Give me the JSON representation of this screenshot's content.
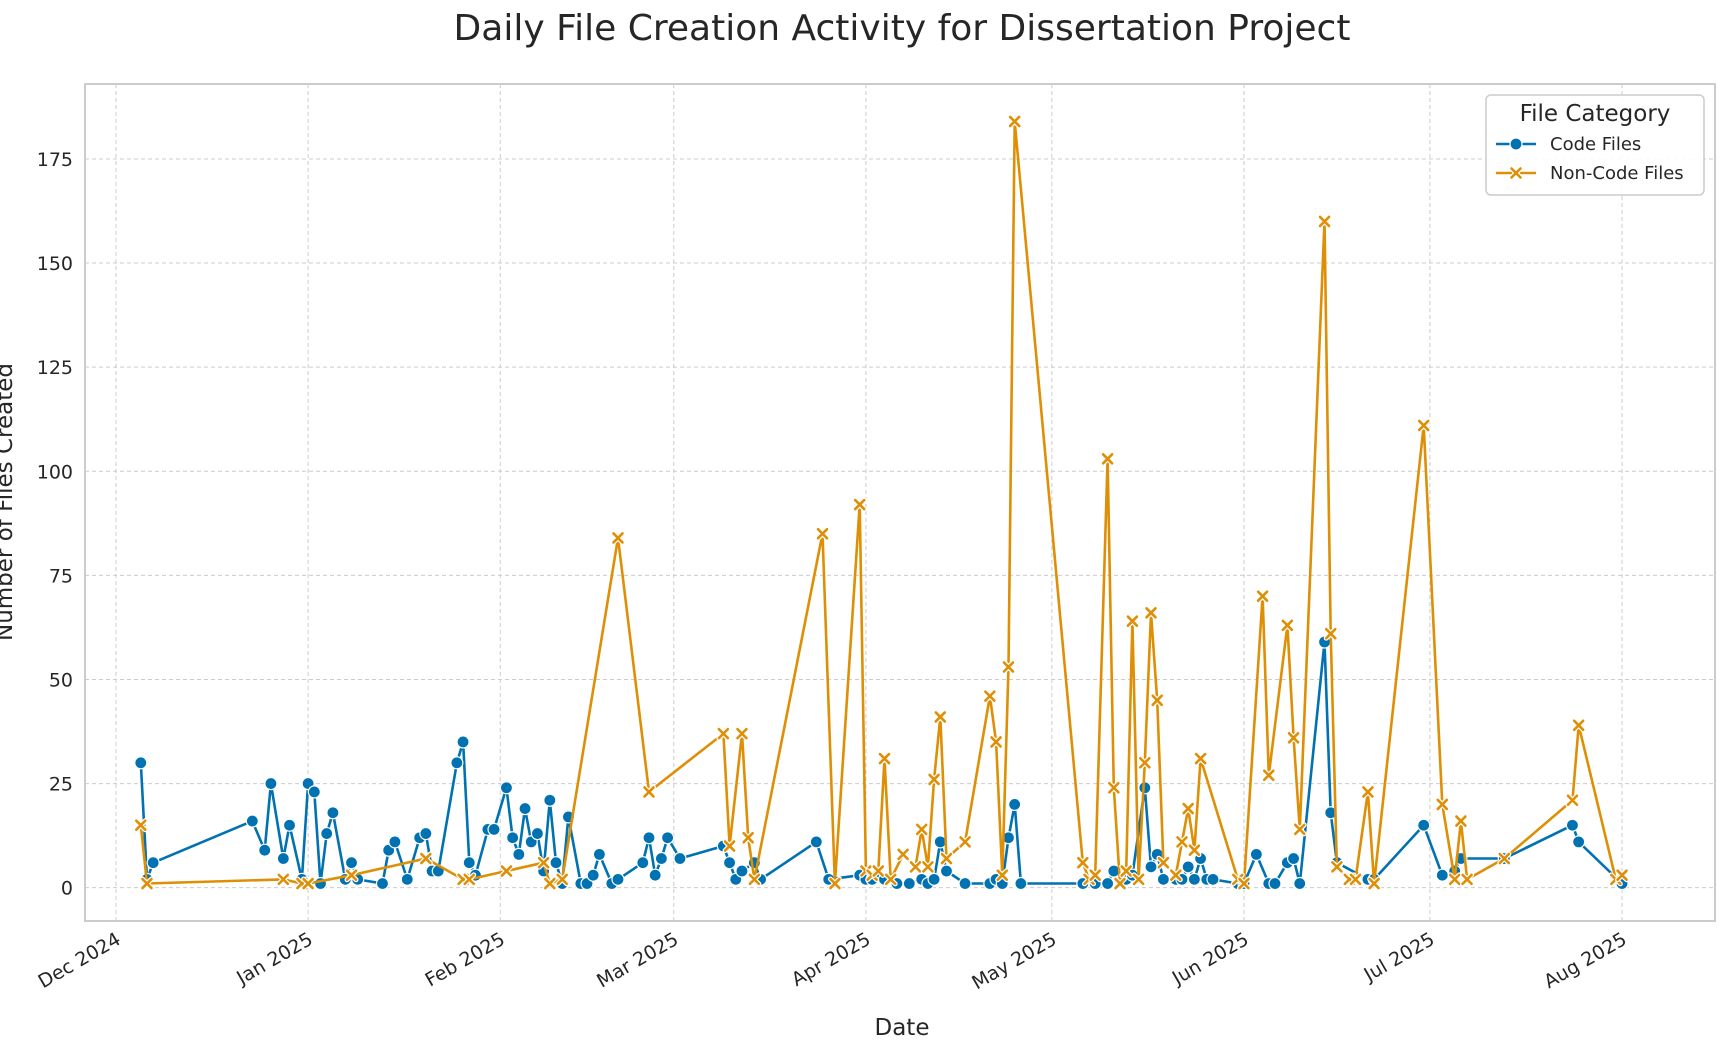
{
  "chart_data": {
    "type": "line",
    "title": "Daily File Creation Activity for Dissertation Project",
    "xlabel": "Date",
    "ylabel": "Number of Files Created",
    "xlim": [
      "2024-11-26",
      "2025-08-16"
    ],
    "ylim": [
      -8,
      193
    ],
    "yticks": [
      0,
      25,
      50,
      75,
      100,
      125,
      150,
      175
    ],
    "xticks": [
      {
        "date": "2024-12-01",
        "label": "Dec 2024"
      },
      {
        "date": "2025-01-01",
        "label": "Jan 2025"
      },
      {
        "date": "2025-02-01",
        "label": "Feb 2025"
      },
      {
        "date": "2025-03-01",
        "label": "Mar 2025"
      },
      {
        "date": "2025-04-01",
        "label": "Apr 2025"
      },
      {
        "date": "2025-05-01",
        "label": "May 2025"
      },
      {
        "date": "2025-06-01",
        "label": "Jun 2025"
      },
      {
        "date": "2025-07-01",
        "label": "Jul 2025"
      },
      {
        "date": "2025-08-01",
        "label": "Aug 2025"
      }
    ],
    "grid": true,
    "legend": {
      "title": "File Category",
      "position": "top-right"
    },
    "series": [
      {
        "name": "Code Files",
        "color": "#0072b2",
        "marker": "circle",
        "points": [
          [
            "2024-12-05",
            30
          ],
          [
            "2024-12-06",
            2
          ],
          [
            "2024-12-07",
            6
          ],
          [
            "2024-12-23",
            16
          ],
          [
            "2024-12-25",
            9
          ],
          [
            "2024-12-26",
            25
          ],
          [
            "2024-12-28",
            7
          ],
          [
            "2024-12-29",
            15
          ],
          [
            "2024-12-31",
            2
          ],
          [
            "2025-01-01",
            25
          ],
          [
            "2025-01-02",
            23
          ],
          [
            "2025-01-03",
            1
          ],
          [
            "2025-01-04",
            13
          ],
          [
            "2025-01-05",
            18
          ],
          [
            "2025-01-07",
            2
          ],
          [
            "2025-01-08",
            6
          ],
          [
            "2025-01-09",
            2
          ],
          [
            "2025-01-13",
            1
          ],
          [
            "2025-01-14",
            9
          ],
          [
            "2025-01-15",
            11
          ],
          [
            "2025-01-17",
            2
          ],
          [
            "2025-01-19",
            12
          ],
          [
            "2025-01-20",
            13
          ],
          [
            "2025-01-21",
            4
          ],
          [
            "2025-01-22",
            4
          ],
          [
            "2025-01-25",
            30
          ],
          [
            "2025-01-26",
            35
          ],
          [
            "2025-01-27",
            6
          ],
          [
            "2025-01-28",
            3
          ],
          [
            "2025-01-30",
            14
          ],
          [
            "2025-01-31",
            14
          ],
          [
            "2025-02-02",
            24
          ],
          [
            "2025-02-03",
            12
          ],
          [
            "2025-02-04",
            8
          ],
          [
            "2025-02-05",
            19
          ],
          [
            "2025-02-06",
            11
          ],
          [
            "2025-02-07",
            13
          ],
          [
            "2025-02-08",
            4
          ],
          [
            "2025-02-09",
            21
          ],
          [
            "2025-02-10",
            6
          ],
          [
            "2025-02-11",
            1
          ],
          [
            "2025-02-12",
            17
          ],
          [
            "2025-02-14",
            1
          ],
          [
            "2025-02-15",
            1
          ],
          [
            "2025-02-16",
            3
          ],
          [
            "2025-02-17",
            8
          ],
          [
            "2025-02-19",
            1
          ],
          [
            "2025-02-20",
            2
          ],
          [
            "2025-02-24",
            6
          ],
          [
            "2025-02-25",
            12
          ],
          [
            "2025-02-26",
            3
          ],
          [
            "2025-02-27",
            7
          ],
          [
            "2025-02-28",
            12
          ],
          [
            "2025-03-02",
            7
          ],
          [
            "2025-03-09",
            10
          ],
          [
            "2025-03-10",
            6
          ],
          [
            "2025-03-11",
            2
          ],
          [
            "2025-03-12",
            4
          ],
          [
            "2025-03-14",
            6
          ],
          [
            "2025-03-15",
            2
          ],
          [
            "2025-03-24",
            11
          ],
          [
            "2025-03-26",
            2
          ],
          [
            "2025-03-31",
            3
          ],
          [
            "2025-04-01",
            2
          ],
          [
            "2025-04-02",
            2
          ],
          [
            "2025-04-03",
            3
          ],
          [
            "2025-04-04",
            2
          ],
          [
            "2025-04-06",
            1
          ],
          [
            "2025-04-08",
            1
          ],
          [
            "2025-04-10",
            2
          ],
          [
            "2025-04-11",
            1
          ],
          [
            "2025-04-12",
            2
          ],
          [
            "2025-04-13",
            11
          ],
          [
            "2025-04-14",
            4
          ],
          [
            "2025-04-17",
            1
          ],
          [
            "2025-04-21",
            1
          ],
          [
            "2025-04-22",
            2
          ],
          [
            "2025-04-23",
            1
          ],
          [
            "2025-04-24",
            12
          ],
          [
            "2025-04-25",
            20
          ],
          [
            "2025-04-26",
            1
          ],
          [
            "2025-05-06",
            1
          ],
          [
            "2025-05-08",
            1
          ],
          [
            "2025-05-10",
            1
          ],
          [
            "2025-05-11",
            4
          ],
          [
            "2025-05-13",
            2
          ],
          [
            "2025-05-14",
            3
          ],
          [
            "2025-05-16",
            24
          ],
          [
            "2025-05-17",
            5
          ],
          [
            "2025-05-18",
            8
          ],
          [
            "2025-05-19",
            2
          ],
          [
            "2025-05-21",
            2
          ],
          [
            "2025-05-22",
            2
          ],
          [
            "2025-05-23",
            5
          ],
          [
            "2025-05-24",
            2
          ],
          [
            "2025-05-25",
            7
          ],
          [
            "2025-05-26",
            2
          ],
          [
            "2025-05-27",
            2
          ],
          [
            "2025-05-31",
            1
          ],
          [
            "2025-06-01",
            1
          ],
          [
            "2025-06-03",
            8
          ],
          [
            "2025-06-05",
            1
          ],
          [
            "2025-06-06",
            1
          ],
          [
            "2025-06-08",
            6
          ],
          [
            "2025-06-09",
            7
          ],
          [
            "2025-06-10",
            1
          ],
          [
            "2025-06-14",
            59
          ],
          [
            "2025-06-15",
            18
          ],
          [
            "2025-06-16",
            6
          ],
          [
            "2025-06-21",
            2
          ],
          [
            "2025-06-22",
            2
          ],
          [
            "2025-06-30",
            15
          ],
          [
            "2025-07-03",
            3
          ],
          [
            "2025-07-05",
            4
          ],
          [
            "2025-07-06",
            7
          ],
          [
            "2025-07-13",
            7
          ],
          [
            "2025-07-24",
            15
          ],
          [
            "2025-07-25",
            11
          ],
          [
            "2025-08-01",
            1
          ]
        ]
      },
      {
        "name": "Non-Code Files",
        "color": "#de8f05",
        "marker": "x",
        "points": [
          [
            "2024-12-05",
            15
          ],
          [
            "2024-12-06",
            1
          ],
          [
            "2024-12-28",
            2
          ],
          [
            "2024-12-31",
            1
          ],
          [
            "2025-01-01",
            1
          ],
          [
            "2025-01-08",
            3
          ],
          [
            "2025-01-20",
            7
          ],
          [
            "2025-01-26",
            2
          ],
          [
            "2025-01-27",
            2
          ],
          [
            "2025-02-02",
            4
          ],
          [
            "2025-02-08",
            6
          ],
          [
            "2025-02-09",
            1
          ],
          [
            "2025-02-11",
            2
          ],
          [
            "2025-02-20",
            84
          ],
          [
            "2025-02-25",
            23
          ],
          [
            "2025-03-09",
            37
          ],
          [
            "2025-03-10",
            10
          ],
          [
            "2025-03-12",
            37
          ],
          [
            "2025-03-13",
            12
          ],
          [
            "2025-03-14",
            2
          ],
          [
            "2025-03-25",
            85
          ],
          [
            "2025-03-27",
            1
          ],
          [
            "2025-03-31",
            92
          ],
          [
            "2025-04-01",
            4
          ],
          [
            "2025-04-02",
            3
          ],
          [
            "2025-04-03",
            4
          ],
          [
            "2025-04-04",
            31
          ],
          [
            "2025-04-05",
            2
          ],
          [
            "2025-04-07",
            8
          ],
          [
            "2025-04-09",
            5
          ],
          [
            "2025-04-10",
            14
          ],
          [
            "2025-04-11",
            5
          ],
          [
            "2025-04-12",
            26
          ],
          [
            "2025-04-13",
            41
          ],
          [
            "2025-04-14",
            7
          ],
          [
            "2025-04-17",
            11
          ],
          [
            "2025-04-21",
            46
          ],
          [
            "2025-04-22",
            35
          ],
          [
            "2025-04-23",
            3
          ],
          [
            "2025-04-24",
            53
          ],
          [
            "2025-04-25",
            184
          ],
          [
            "2025-05-06",
            6
          ],
          [
            "2025-05-07",
            2
          ],
          [
            "2025-05-08",
            3
          ],
          [
            "2025-05-10",
            103
          ],
          [
            "2025-05-11",
            24
          ],
          [
            "2025-05-12",
            1
          ],
          [
            "2025-05-13",
            4
          ],
          [
            "2025-05-14",
            64
          ],
          [
            "2025-05-15",
            2
          ],
          [
            "2025-05-16",
            30
          ],
          [
            "2025-05-17",
            66
          ],
          [
            "2025-05-18",
            45
          ],
          [
            "2025-05-19",
            6
          ],
          [
            "2025-05-21",
            3
          ],
          [
            "2025-05-22",
            11
          ],
          [
            "2025-05-23",
            19
          ],
          [
            "2025-05-24",
            9
          ],
          [
            "2025-05-25",
            31
          ],
          [
            "2025-05-31",
            2
          ],
          [
            "2025-06-01",
            1
          ],
          [
            "2025-06-04",
            70
          ],
          [
            "2025-06-05",
            27
          ],
          [
            "2025-06-08",
            63
          ],
          [
            "2025-06-09",
            36
          ],
          [
            "2025-06-10",
            14
          ],
          [
            "2025-06-14",
            160
          ],
          [
            "2025-06-15",
            61
          ],
          [
            "2025-06-16",
            5
          ],
          [
            "2025-06-18",
            2
          ],
          [
            "2025-06-19",
            2
          ],
          [
            "2025-06-21",
            23
          ],
          [
            "2025-06-22",
            1
          ],
          [
            "2025-06-30",
            111
          ],
          [
            "2025-07-03",
            20
          ],
          [
            "2025-07-05",
            2
          ],
          [
            "2025-07-06",
            16
          ],
          [
            "2025-07-07",
            2
          ],
          [
            "2025-07-13",
            7
          ],
          [
            "2025-07-24",
            21
          ],
          [
            "2025-07-25",
            39
          ],
          [
            "2025-07-31",
            2
          ],
          [
            "2025-08-01",
            3
          ]
        ]
      }
    ]
  }
}
